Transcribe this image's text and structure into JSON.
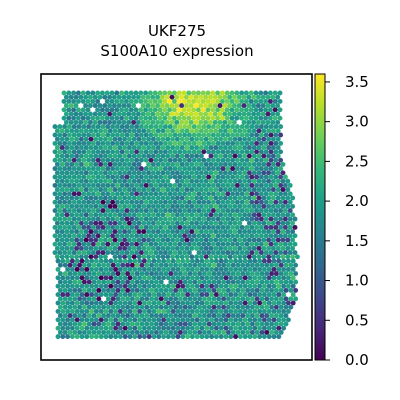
{
  "chart_data": {
    "type": "heatmap",
    "subtype": "spatial-scatter",
    "title_lines": [
      "UKF275",
      "S100A10 expression"
    ],
    "xlabel": "",
    "ylabel": "",
    "axis_ticks_visible": false,
    "grid": false,
    "colormap": "viridis",
    "colormap_stops": [
      "#440154",
      "#482878",
      "#3e4989",
      "#31688e",
      "#26828e",
      "#1f9e89",
      "#35b779",
      "#6ece58",
      "#b5de2b",
      "#fde725"
    ],
    "colorbar": {
      "position": "right",
      "min": 0.0,
      "max": 3.6,
      "ticks": [
        0.0,
        0.5,
        1.0,
        1.5,
        2.0,
        2.5,
        3.0,
        3.5
      ],
      "tick_labels": [
        "0.0",
        "0.5",
        "1.0",
        "1.5",
        "2.0",
        "2.5",
        "3.0",
        "3.5"
      ]
    },
    "typical_expression": 1.9,
    "high_expression_region": "top-center",
    "high_expression_peak": 3.3,
    "low_expression_regions": [
      "center-left",
      "bottom-left",
      "right-edge"
    ]
  }
}
